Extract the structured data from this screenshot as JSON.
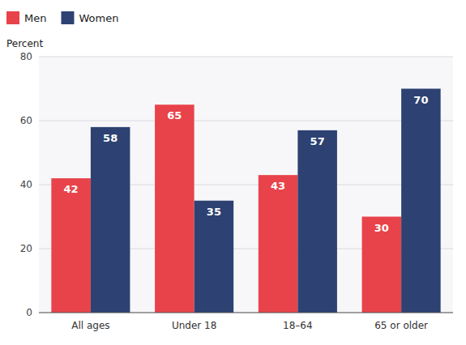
{
  "chart_data": {
    "type": "bar",
    "y_label": "Percent",
    "categories": [
      "All ages",
      "Under 18",
      "18–64",
      "65 or older"
    ],
    "series": [
      {
        "name": "Men",
        "color": "#e8434a",
        "values": [
          42,
          65,
          43,
          30
        ]
      },
      {
        "name": "Women",
        "color": "#2d4272",
        "values": [
          58,
          35,
          57,
          70
        ]
      }
    ],
    "ylim": [
      0,
      80
    ],
    "yticks": [
      0,
      20,
      40,
      60,
      80
    ],
    "grid": true,
    "legend": "upper left",
    "data_labels": true
  }
}
